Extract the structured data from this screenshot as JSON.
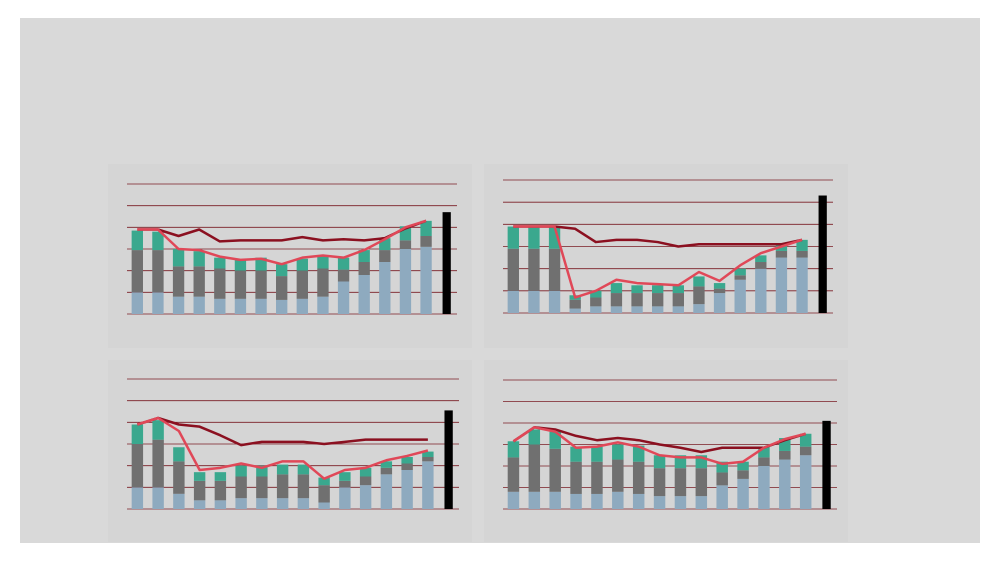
{
  "chart_data": [
    {
      "type": "bar",
      "stacked": true,
      "grid": true,
      "ylim": [
        0,
        6
      ],
      "yticks": [
        0,
        1,
        2,
        3,
        4,
        5,
        6
      ],
      "categories": [
        null,
        null,
        null,
        null,
        null,
        null,
        null,
        null,
        null,
        null,
        null,
        null,
        null,
        null,
        null,
        null
      ],
      "series": [
        {
          "type": "bar",
          "color": "#8eaabf",
          "values": [
            1.0,
            1.0,
            0.8,
            0.8,
            0.7,
            0.7,
            0.7,
            0.65,
            0.7,
            0.8,
            1.5,
            1.8,
            2.4,
            3.0,
            3.1,
            null
          ]
        },
        {
          "type": "bar",
          "color": "#707070",
          "values": [
            1.95,
            1.95,
            1.4,
            1.4,
            1.4,
            1.3,
            1.3,
            1.1,
            1.3,
            1.3,
            0.55,
            0.6,
            0.55,
            0.4,
            0.5,
            null
          ]
        },
        {
          "type": "bar",
          "color": "#3aa88e",
          "values": [
            0.9,
            0.85,
            0.8,
            0.7,
            0.5,
            0.5,
            0.6,
            0.55,
            0.55,
            0.6,
            0.55,
            0.55,
            0.55,
            0.65,
            0.7,
            null
          ]
        },
        {
          "type": "bar",
          "color": "#000000",
          "values": [
            null,
            null,
            null,
            null,
            null,
            null,
            null,
            null,
            null,
            null,
            null,
            null,
            null,
            null,
            null,
            4.7
          ]
        },
        {
          "type": "line",
          "color": "#8b1020",
          "values": [
            3.9,
            3.9,
            3.6,
            3.9,
            3.35,
            3.4,
            3.4,
            3.4,
            3.55,
            3.4,
            3.45,
            3.4,
            3.5,
            3.95,
            4.3,
            null
          ]
        },
        {
          "type": "line",
          "color": "#e04858",
          "values": [
            3.9,
            3.9,
            3.0,
            2.95,
            2.65,
            2.5,
            2.55,
            2.3,
            2.6,
            2.7,
            2.6,
            2.95,
            3.45,
            4.0,
            4.3,
            null
          ]
        }
      ]
    },
    {
      "type": "bar",
      "stacked": true,
      "grid": true,
      "ylim": [
        0,
        6
      ],
      "yticks": [
        0,
        1,
        2,
        3,
        4,
        5,
        6
      ],
      "categories": [
        null,
        null,
        null,
        null,
        null,
        null,
        null,
        null,
        null,
        null,
        null,
        null,
        null,
        null,
        null,
        null
      ],
      "series": [
        {
          "type": "bar",
          "color": "#8eaabf",
          "values": [
            1.0,
            1.0,
            1.0,
            0.2,
            0.3,
            0.3,
            0.3,
            0.3,
            0.3,
            0.4,
            0.9,
            1.5,
            2.0,
            2.5,
            2.5,
            null
          ]
        },
        {
          "type": "bar",
          "color": "#707070",
          "values": [
            1.9,
            1.9,
            1.9,
            0.4,
            0.4,
            0.6,
            0.6,
            0.6,
            0.6,
            0.8,
            0.2,
            0.2,
            0.3,
            0.3,
            0.3,
            null
          ]
        },
        {
          "type": "bar",
          "color": "#3aa88e",
          "values": [
            1.0,
            1.0,
            1.0,
            0.2,
            0.3,
            0.45,
            0.35,
            0.35,
            0.35,
            0.45,
            0.25,
            0.3,
            0.3,
            0.3,
            0.5,
            null
          ]
        },
        {
          "type": "bar",
          "color": "#000000",
          "values": [
            null,
            null,
            null,
            null,
            null,
            null,
            null,
            null,
            null,
            null,
            null,
            null,
            null,
            null,
            null,
            5.3
          ]
        },
        {
          "type": "line",
          "color": "#8b1020",
          "values": [
            3.9,
            3.9,
            3.9,
            3.8,
            3.2,
            3.3,
            3.3,
            3.2,
            3.0,
            3.1,
            3.1,
            3.1,
            3.1,
            3.1,
            3.3,
            null
          ]
        },
        {
          "type": "line",
          "color": "#e04858",
          "values": [
            3.9,
            3.9,
            3.9,
            0.7,
            1.0,
            1.5,
            1.35,
            1.3,
            1.25,
            1.85,
            1.45,
            2.15,
            2.7,
            3.0,
            3.3,
            null
          ]
        }
      ]
    },
    {
      "type": "bar",
      "stacked": true,
      "grid": true,
      "ylim": [
        0,
        6
      ],
      "yticks": [
        0,
        1,
        2,
        3,
        4,
        5,
        6
      ],
      "categories": [
        null,
        null,
        null,
        null,
        null,
        null,
        null,
        null,
        null,
        null,
        null,
        null,
        null,
        null,
        null,
        null
      ],
      "series": [
        {
          "type": "bar",
          "color": "#8eaabf",
          "values": [
            1.0,
            1.0,
            0.7,
            0.4,
            0.4,
            0.5,
            0.5,
            0.5,
            0.5,
            0.3,
            1.0,
            1.1,
            1.6,
            1.8,
            2.2,
            null
          ]
        },
        {
          "type": "bar",
          "color": "#707070",
          "values": [
            2.0,
            2.2,
            1.5,
            0.9,
            0.9,
            1.0,
            1.0,
            1.1,
            1.1,
            0.8,
            0.3,
            0.4,
            0.3,
            0.3,
            0.2,
            null
          ]
        },
        {
          "type": "bar",
          "color": "#3aa88e",
          "values": [
            0.9,
            0.9,
            0.65,
            0.4,
            0.4,
            0.5,
            0.5,
            0.45,
            0.45,
            0.35,
            0.4,
            0.4,
            0.3,
            0.3,
            0.25,
            null
          ]
        },
        {
          "type": "bar",
          "color": "#000000",
          "values": [
            null,
            null,
            null,
            null,
            null,
            null,
            null,
            null,
            null,
            null,
            null,
            null,
            null,
            null,
            null,
            4.55
          ]
        },
        {
          "type": "line",
          "color": "#8b1020",
          "values": [
            3.9,
            4.2,
            3.9,
            3.8,
            3.4,
            2.95,
            3.1,
            3.1,
            3.1,
            3.0,
            3.1,
            3.2,
            3.2,
            3.2,
            3.2,
            null
          ]
        },
        {
          "type": "line",
          "color": "#e04858",
          "values": [
            3.9,
            4.2,
            3.6,
            1.8,
            1.9,
            2.1,
            1.9,
            2.2,
            2.2,
            1.4,
            1.8,
            1.9,
            2.25,
            2.45,
            2.7,
            null
          ]
        }
      ]
    },
    {
      "type": "bar",
      "stacked": true,
      "grid": true,
      "ylim": [
        0,
        6
      ],
      "yticks": [
        0,
        1,
        2,
        3,
        4,
        5,
        6
      ],
      "categories": [
        null,
        null,
        null,
        null,
        null,
        null,
        null,
        null,
        null,
        null,
        null,
        null,
        null,
        null,
        null,
        null
      ],
      "series": [
        {
          "type": "bar",
          "color": "#8eaabf",
          "values": [
            0.8,
            0.8,
            0.8,
            0.7,
            0.7,
            0.8,
            0.7,
            0.6,
            0.6,
            0.6,
            1.1,
            1.4,
            2.0,
            2.3,
            2.5,
            null
          ]
        },
        {
          "type": "bar",
          "color": "#707070",
          "values": [
            1.6,
            2.2,
            2.0,
            1.5,
            1.5,
            1.5,
            1.5,
            1.3,
            1.3,
            1.3,
            0.6,
            0.4,
            0.4,
            0.4,
            0.4,
            null
          ]
        },
        {
          "type": "bar",
          "color": "#3aa88e",
          "values": [
            0.75,
            0.7,
            0.8,
            0.7,
            0.7,
            0.7,
            0.75,
            0.6,
            0.6,
            0.6,
            0.5,
            0.4,
            0.5,
            0.6,
            0.6,
            null
          ]
        },
        {
          "type": "bar",
          "color": "#000000",
          "values": [
            null,
            null,
            null,
            null,
            null,
            null,
            null,
            null,
            null,
            null,
            null,
            null,
            null,
            null,
            null,
            4.1
          ]
        },
        {
          "type": "line",
          "color": "#8b1020",
          "values": [
            3.15,
            3.8,
            3.7,
            3.4,
            3.2,
            3.3,
            3.2,
            3.0,
            2.85,
            2.65,
            2.85,
            2.85,
            2.85,
            3.2,
            3.5,
            null
          ]
        },
        {
          "type": "line",
          "color": "#e04858",
          "values": [
            3.15,
            3.8,
            3.6,
            2.85,
            2.9,
            3.1,
            2.9,
            2.5,
            2.4,
            2.4,
            2.1,
            2.2,
            2.85,
            3.25,
            3.5,
            null
          ]
        }
      ]
    }
  ]
}
